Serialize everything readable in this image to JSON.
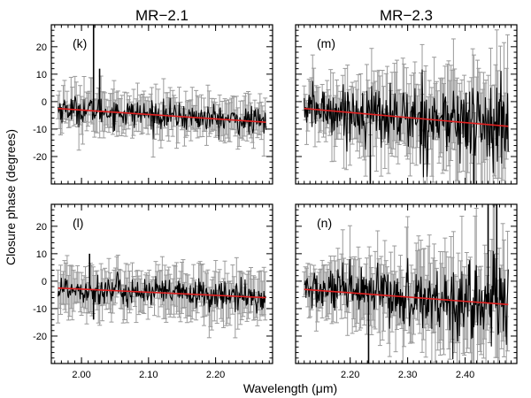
{
  "figure": {
    "ylabel": "Closure phase (degrees)",
    "xlabel": "Wavelength (μm)"
  },
  "colors": {
    "data": "#000000",
    "errorbar": "#9a9a9a",
    "fit": "#e02020",
    "frame": "#000000"
  },
  "chart_data": [
    {
      "type": "line",
      "column_title": "MR−2.1",
      "panel_label": "(k)",
      "xlim": [
        1.955,
        2.285
      ],
      "ylim": [
        -30,
        28
      ],
      "xticks": [
        2.0,
        2.1,
        2.2
      ],
      "xtick_labels": [],
      "yticks": [
        -20,
        -10,
        0,
        10,
        20
      ],
      "ytick_labels": [
        "-20",
        "-10",
        "0",
        "10",
        "20"
      ],
      "x_start": 1.965,
      "x_end": 2.275,
      "n_points": 320,
      "noise_amplitude": 2.5,
      "error_bar": 6,
      "fit": {
        "x": [
          1.965,
          2.275
        ],
        "y": [
          -2.5,
          -7.5
        ]
      },
      "spikes": [
        {
          "x": 2.018,
          "y": 28
        },
        {
          "x": 2.027,
          "y": 12
        }
      ]
    },
    {
      "type": "line",
      "column_title": "MR−2.3",
      "panel_label": "(m)",
      "xlim": [
        2.105,
        2.49
      ],
      "ylim": [
        -30,
        28
      ],
      "xticks": [
        2.2,
        2.3,
        2.4
      ],
      "xtick_labels": [],
      "yticks": [
        -20,
        -10,
        0,
        10,
        20
      ],
      "ytick_labels": [],
      "x_start": 2.12,
      "x_end": 2.475,
      "n_points": 340,
      "noise_amplitude": 5.5,
      "error_bar": 10,
      "fit": {
        "x": [
          2.12,
          2.475
        ],
        "y": [
          -2.5,
          -9.0
        ]
      },
      "spikes": [
        {
          "x": 2.235,
          "y": -30
        },
        {
          "x": 2.415,
          "y": -30
        }
      ]
    },
    {
      "type": "line",
      "column_title": "",
      "panel_label": "(l)",
      "xlim": [
        1.955,
        2.285
      ],
      "ylim": [
        -30,
        28
      ],
      "xticks": [
        2.0,
        2.1,
        2.2
      ],
      "xtick_labels": [
        "2.00",
        "2.10",
        "2.20"
      ],
      "yticks": [
        -20,
        -10,
        0,
        10,
        20
      ],
      "ytick_labels": [
        "-20",
        "-10",
        "0",
        "10",
        "20"
      ],
      "x_start": 1.965,
      "x_end": 2.275,
      "n_points": 320,
      "noise_amplitude": 2.7,
      "error_bar": 7,
      "fit": {
        "x": [
          1.965,
          2.275
        ],
        "y": [
          -2.5,
          -6.0
        ]
      },
      "spikes": [
        {
          "x": 2.012,
          "y": 10
        },
        {
          "x": 2.018,
          "y": -14
        }
      ]
    },
    {
      "type": "line",
      "column_title": "",
      "panel_label": "(n)",
      "xlim": [
        2.105,
        2.49
      ],
      "ylim": [
        -30,
        28
      ],
      "xticks": [
        2.2,
        2.3,
        2.4
      ],
      "xtick_labels": [
        "2.20",
        "2.30",
        "2.40"
      ],
      "yticks": [
        -20,
        -10,
        0,
        10,
        20
      ],
      "ytick_labels": [],
      "x_start": 2.12,
      "x_end": 2.475,
      "n_points": 340,
      "noise_amplitude": 5.0,
      "error_bar": 10,
      "fit": {
        "x": [
          2.12,
          2.475
        ],
        "y": [
          -3.0,
          -8.5
        ]
      },
      "spikes": [
        {
          "x": 2.232,
          "y": -30
        },
        {
          "x": 2.44,
          "y": 28
        },
        {
          "x": 2.455,
          "y": 28
        }
      ]
    }
  ]
}
